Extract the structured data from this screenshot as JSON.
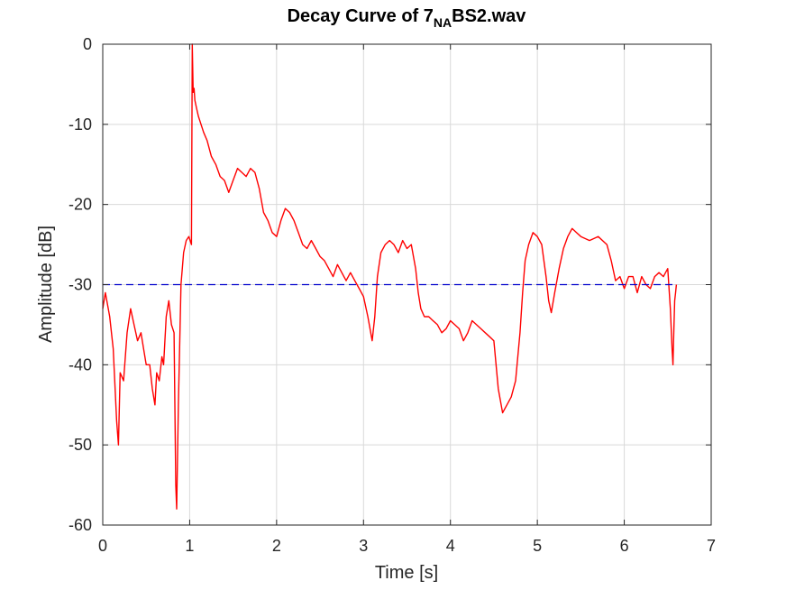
{
  "chart_data": {
    "type": "line",
    "title_prefix": "Decay Curve of 7",
    "title_subscript": "NA",
    "title_suffix": "BS2.wav",
    "xlabel": "Time [s]",
    "ylabel": "Amplitude [dB]",
    "xlim": [
      0,
      7
    ],
    "ylim": [
      -60,
      0
    ],
    "xticks": [
      0,
      1,
      2,
      3,
      4,
      5,
      6,
      7
    ],
    "yticks": [
      0,
      -10,
      -20,
      -30,
      -40,
      -50,
      -60
    ],
    "grid": true,
    "series": [
      {
        "color": "#ff0000",
        "style": "solid",
        "x": [
          0,
          0.03,
          0.08,
          0.12,
          0.16,
          0.18,
          0.2,
          0.24,
          0.28,
          0.32,
          0.36,
          0.4,
          0.44,
          0.47,
          0.5,
          0.54,
          0.57,
          0.6,
          0.62,
          0.65,
          0.68,
          0.7,
          0.73,
          0.76,
          0.79,
          0.82,
          0.84,
          0.85,
          0.87,
          0.9,
          0.93,
          0.96,
          0.99,
          1.02,
          1.03,
          1.04,
          1.05,
          1.06,
          1.08,
          1.1,
          1.13,
          1.16,
          1.2,
          1.25,
          1.3,
          1.35,
          1.4,
          1.45,
          1.5,
          1.55,
          1.6,
          1.65,
          1.7,
          1.75,
          1.8,
          1.85,
          1.9,
          1.95,
          2.0,
          2.05,
          2.1,
          2.15,
          2.2,
          2.25,
          2.3,
          2.35,
          2.4,
          2.45,
          2.5,
          2.55,
          2.6,
          2.65,
          2.7,
          2.75,
          2.8,
          2.85,
          2.9,
          2.95,
          3.0,
          3.05,
          3.1,
          3.13,
          3.16,
          3.2,
          3.25,
          3.3,
          3.35,
          3.4,
          3.45,
          3.5,
          3.55,
          3.6,
          3.63,
          3.66,
          3.7,
          3.75,
          3.8,
          3.85,
          3.9,
          3.95,
          4.0,
          4.05,
          4.1,
          4.15,
          4.2,
          4.25,
          4.3,
          4.35,
          4.4,
          4.45,
          4.5,
          4.55,
          4.6,
          4.65,
          4.7,
          4.75,
          4.8,
          4.83,
          4.86,
          4.9,
          4.95,
          5.0,
          5.05,
          5.1,
          5.13,
          5.16,
          5.2,
          5.25,
          5.3,
          5.35,
          5.4,
          5.45,
          5.5,
          5.6,
          5.7,
          5.8,
          5.85,
          5.9,
          5.95,
          6.0,
          6.05,
          6.1,
          6.15,
          6.2,
          6.25,
          6.3,
          6.35,
          6.4,
          6.45,
          6.5,
          6.53,
          6.55,
          6.56,
          6.57,
          6.58,
          6.59,
          6.6
        ],
        "y": [
          -33,
          -31,
          -34,
          -38,
          -47,
          -50,
          -41,
          -42,
          -36,
          -33,
          -35,
          -37,
          -36,
          -38,
          -40,
          -40,
          -43,
          -45,
          -41,
          -42,
          -39,
          -40,
          -34,
          -32,
          -35,
          -36,
          -55,
          -58,
          -45,
          -30,
          -26,
          -24.5,
          -24,
          -25,
          0,
          -6,
          -5.5,
          -7,
          -8,
          -9,
          -10,
          -11,
          -12,
          -14,
          -15,
          -16.5,
          -17,
          -18.5,
          -17,
          -15.5,
          -16,
          -16.5,
          -15.5,
          -16,
          -18,
          -21,
          -22,
          -23.5,
          -24,
          -22,
          -20.5,
          -21,
          -22,
          -23.5,
          -25,
          -25.5,
          -24.5,
          -25.5,
          -26.5,
          -27,
          -28,
          -29,
          -27.5,
          -28.5,
          -29.5,
          -28.5,
          -29.5,
          -30.5,
          -31.5,
          -34,
          -37,
          -34,
          -29,
          -26,
          -25,
          -24.5,
          -25,
          -26,
          -24.5,
          -25.5,
          -25,
          -28,
          -31,
          -33,
          -34,
          -34,
          -34.5,
          -35,
          -36,
          -35.5,
          -34.5,
          -35,
          -35.5,
          -37,
          -36,
          -34.5,
          -35,
          -35.5,
          -36,
          -36.5,
          -37,
          -43,
          -46,
          -45,
          -44,
          -42,
          -36,
          -31,
          -27,
          -25,
          -23.5,
          -24,
          -25,
          -29,
          -32,
          -33.5,
          -31,
          -28,
          -25.5,
          -24,
          -23,
          -23.5,
          -24,
          -24.5,
          -24,
          -25,
          -27,
          -29.5,
          -29,
          -30.5,
          -29,
          -29,
          -31,
          -29,
          -30,
          -30.5,
          -29,
          -28.5,
          -29,
          -28,
          -33,
          -38,
          -40,
          -36,
          -32,
          -31,
          -30
        ]
      },
      {
        "color": "#0000cc",
        "style": "dashed",
        "x": [
          0,
          6.6
        ],
        "y": [
          -30,
          -30
        ]
      }
    ]
  }
}
